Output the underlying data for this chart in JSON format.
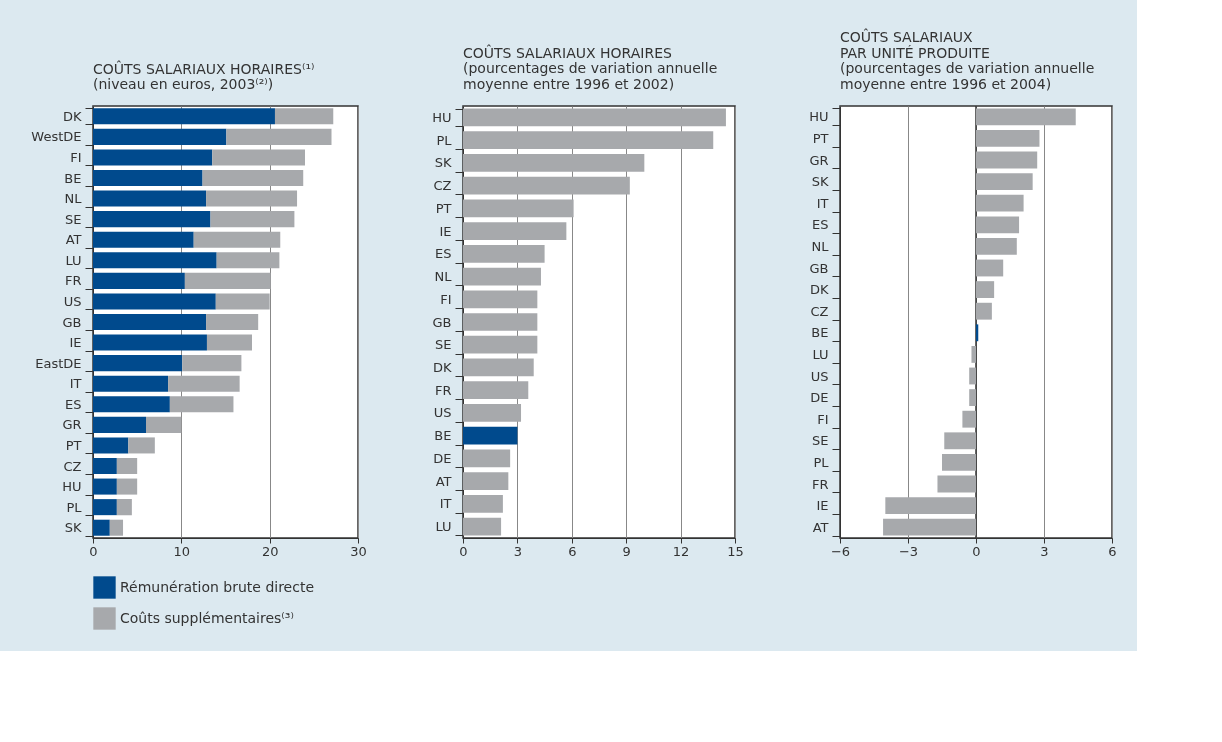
{
  "chart_data": [
    {
      "type": "bar",
      "orientation": "horizontal",
      "stacked": true,
      "title": "COÛTS SALARIAUX HORAIRES⁽¹⁾",
      "subtitle": "(niveau en euros, 2003⁽²⁾)",
      "categories": [
        "DK",
        "WestDE",
        "FI",
        "BE",
        "NL",
        "SE",
        "AT",
        "LU",
        "FR",
        "US",
        "GB",
        "IE",
        "EastDE",
        "IT",
        "ES",
        "GR",
        "PT",
        "CZ",
        "HU",
        "PL",
        "SK"
      ],
      "series": [
        {
          "name": "Rémunération brute directe",
          "color": "#004a8d",
          "values": [
            20.6,
            15.1,
            13.5,
            12.4,
            12.8,
            13.3,
            11.4,
            14.0,
            10.4,
            13.9,
            12.8,
            12.9,
            10.1,
            8.5,
            8.7,
            6.0,
            4.0,
            2.7,
            2.7,
            2.7,
            1.9
          ]
        },
        {
          "name": "Coûts supplémentaires⁽³⁾",
          "color": "#a7a9ac",
          "values": [
            6.6,
            11.9,
            10.5,
            11.4,
            10.3,
            9.5,
            9.8,
            7.1,
            9.7,
            6.1,
            5.9,
            5.1,
            6.7,
            8.1,
            7.2,
            4.0,
            3.0,
            2.3,
            2.3,
            1.7,
            1.5
          ]
        }
      ],
      "xlim": [
        0,
        30
      ],
      "xticks": [
        0,
        10,
        20,
        30
      ],
      "grid": "x",
      "legend": "bottom left"
    },
    {
      "type": "bar",
      "orientation": "horizontal",
      "title": "COÛTS SALARIAUX HORAIRES",
      "subtitle": "(pourcentages de variation annuelle\nmoyenne entre 1996 et 2002)",
      "categories": [
        "HU",
        "PL",
        "SK",
        "CZ",
        "PT",
        "IE",
        "ES",
        "NL",
        "FI",
        "GB",
        "SE",
        "DK",
        "FR",
        "US",
        "BE",
        "DE",
        "AT",
        "IT",
        "LU"
      ],
      "values": [
        14.5,
        13.8,
        10.0,
        9.2,
        6.1,
        5.7,
        4.5,
        4.3,
        4.1,
        4.1,
        4.1,
        3.9,
        3.6,
        3.2,
        3.0,
        2.6,
        2.5,
        2.2,
        2.1
      ],
      "colors": [
        "#a7a9ac",
        "#a7a9ac",
        "#a7a9ac",
        "#a7a9ac",
        "#a7a9ac",
        "#a7a9ac",
        "#a7a9ac",
        "#a7a9ac",
        "#a7a9ac",
        "#a7a9ac",
        "#a7a9ac",
        "#a7a9ac",
        "#a7a9ac",
        "#a7a9ac",
        "#004a8d",
        "#a7a9ac",
        "#a7a9ac",
        "#a7a9ac",
        "#a7a9ac"
      ],
      "xlim": [
        0,
        15
      ],
      "xticks": [
        0,
        3,
        6,
        9,
        12,
        15
      ],
      "grid": "x"
    },
    {
      "type": "bar",
      "orientation": "horizontal",
      "title": "COÛTS SALARIAUX\nPAR UNITÉ PRODUITE",
      "subtitle": "(pourcentages de variation annuelle\nmoyenne entre 1996 et 2004)",
      "categories": [
        "HU",
        "PT",
        "GR",
        "SK",
        "IT",
        "ES",
        "NL",
        "GB",
        "DK",
        "CZ",
        "BE",
        "LU",
        "US",
        "DE",
        "FI",
        "SE",
        "PL",
        "FR",
        "IE",
        "AT"
      ],
      "values": [
        4.4,
        2.8,
        2.7,
        2.5,
        2.1,
        1.9,
        1.8,
        1.2,
        0.8,
        0.7,
        0.1,
        -0.2,
        -0.3,
        -0.3,
        -0.6,
        -1.4,
        -1.5,
        -1.7,
        -4.0,
        -4.1
      ],
      "colors": [
        "#a7a9ac",
        "#a7a9ac",
        "#a7a9ac",
        "#a7a9ac",
        "#a7a9ac",
        "#a7a9ac",
        "#a7a9ac",
        "#a7a9ac",
        "#a7a9ac",
        "#a7a9ac",
        "#004a8d",
        "#a7a9ac",
        "#a7a9ac",
        "#a7a9ac",
        "#a7a9ac",
        "#a7a9ac",
        "#a7a9ac",
        "#a7a9ac",
        "#a7a9ac",
        "#a7a9ac"
      ],
      "xlim": [
        -6,
        6
      ],
      "xticks": [
        {
          "value": -6,
          "label": "−6"
        },
        {
          "value": -3,
          "label": "−3"
        },
        0,
        3,
        6
      ],
      "grid": "x",
      "ref_lines": [
        {
          "axis": "x",
          "value": 0,
          "color": "#333333"
        }
      ]
    }
  ]
}
